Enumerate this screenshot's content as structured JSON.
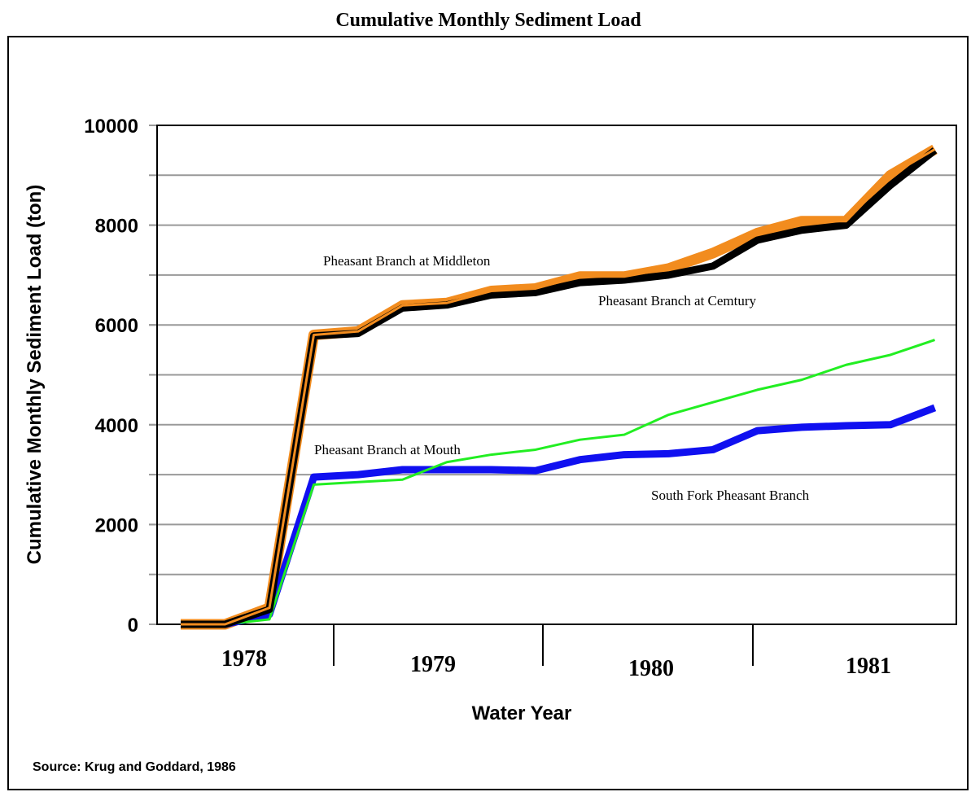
{
  "chart_data": {
    "type": "line",
    "title": "Cumulative Monthly Sediment Load",
    "y_label": "Cumulative Monthly Sediment Load (ton)",
    "x_label": "Water Year",
    "source": "Source: Krug and Goddard, 1986",
    "categories": [
      null,
      null,
      null,
      null,
      null,
      null,
      null,
      null,
      null,
      null,
      null,
      null,
      null,
      null,
      null,
      null,
      null,
      null
    ],
    "year_labels": [
      "1978",
      "1979",
      "1980",
      "1981"
    ],
    "ylim": [
      0,
      10000
    ],
    "yticks": [
      0,
      2000,
      4000,
      6000,
      8000,
      10000
    ],
    "grid_yticks": [
      1000,
      2000,
      3000,
      4000,
      5000,
      6000,
      7000,
      8000,
      9000
    ],
    "grid": true,
    "series": [
      {
        "name": "Pheasant Branch at Cemtury",
        "color": "#000000",
        "values": [
          0,
          0,
          300,
          5780,
          5830,
          6340,
          6400,
          6600,
          6650,
          6850,
          6900,
          7000,
          7180,
          7700,
          7900,
          8000,
          8800,
          9500
        ]
      },
      {
        "name": "Pheasant Branch at Middleton",
        "color": "#f28c1e",
        "values": [
          0,
          0,
          330,
          5800,
          5870,
          6390,
          6440,
          6680,
          6730,
          6970,
          6970,
          7130,
          7440,
          7840,
          8080,
          8080,
          9000,
          9520
        ]
      },
      {
        "name": "South Fork Pheasant Branch",
        "color": "#22ee22",
        "values": [
          0,
          0,
          100,
          2800,
          2850,
          2900,
          3250,
          3400,
          3500,
          3700,
          3800,
          4200,
          4450,
          4700,
          4900,
          5200,
          5400,
          5700
        ]
      },
      {
        "name": "Pheasant Branch at Mouth",
        "color": "#1010f0",
        "values": [
          0,
          0,
          200,
          2950,
          3000,
          3100,
          3100,
          3100,
          3080,
          3300,
          3400,
          3420,
          3500,
          3880,
          3950,
          3980,
          4000,
          4340
        ]
      }
    ]
  }
}
